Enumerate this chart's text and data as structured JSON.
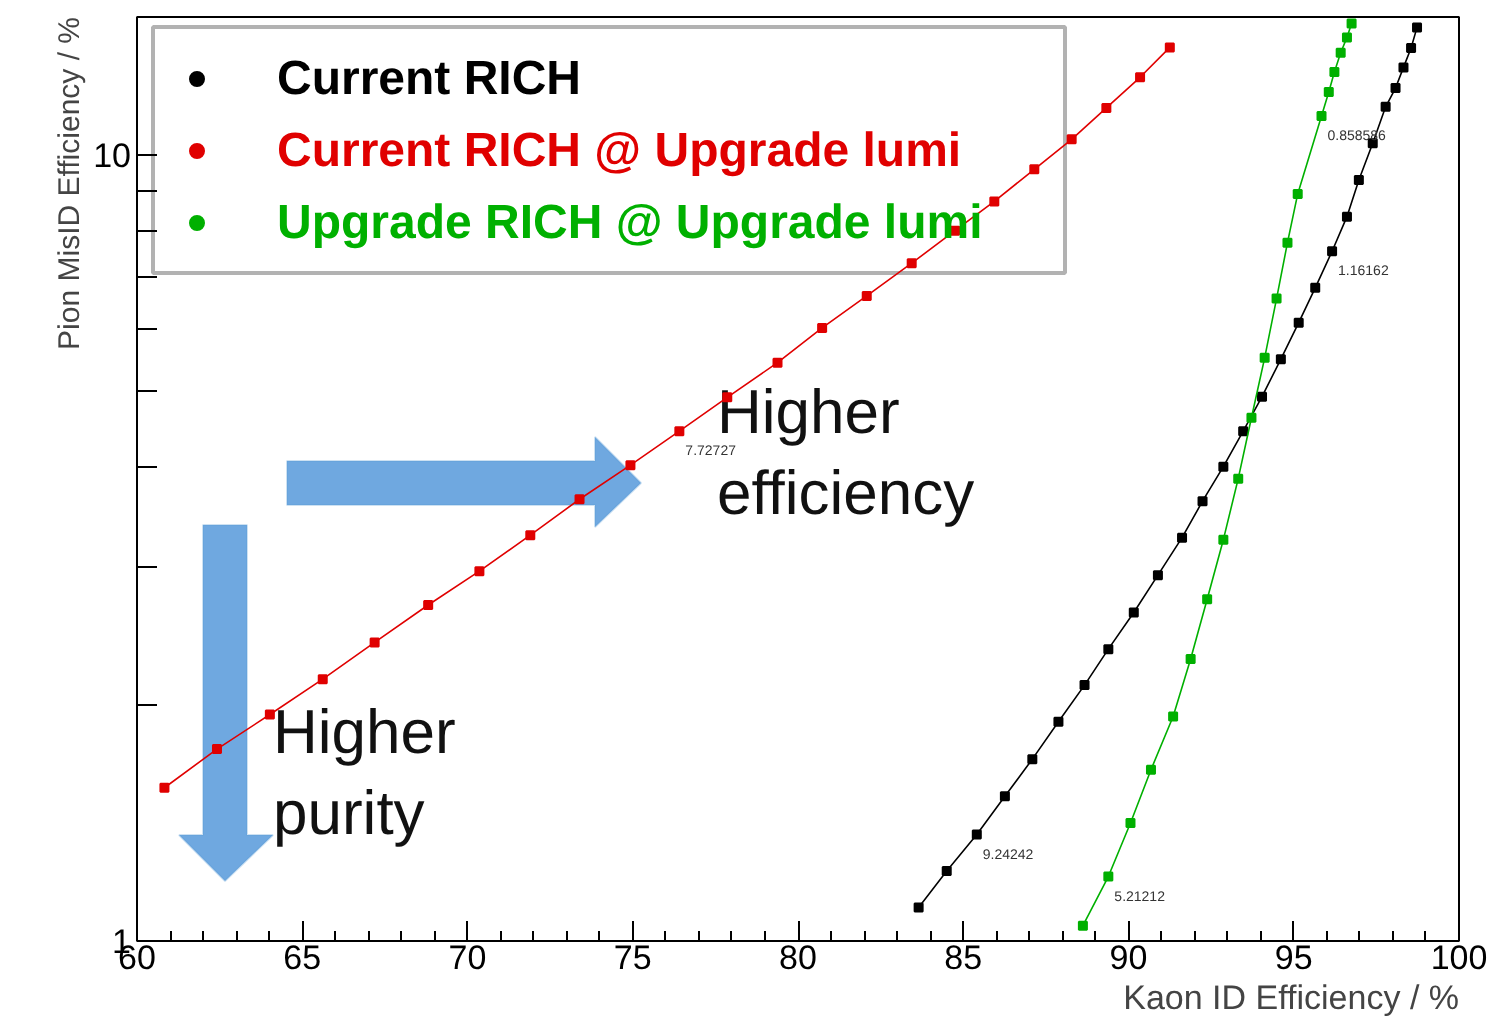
{
  "chart_data": {
    "type": "line",
    "xlabel": "Kaon ID Efficiency / %",
    "ylabel": "Pion MisID Efficiency / %",
    "xlim": [
      60,
      100
    ],
    "xticks": [
      60,
      65,
      70,
      75,
      80,
      85,
      90,
      95,
      100
    ],
    "ylim": [
      1,
      15
    ],
    "yticks": [
      1,
      {
        "value": 2,
        "label": null
      },
      {
        "value": 3,
        "label": null
      },
      {
        "value": 4,
        "label": null
      },
      {
        "value": 5,
        "label": null
      },
      {
        "value": 6,
        "label": null
      },
      {
        "value": 7,
        "label": null
      },
      {
        "value": 8,
        "label": null
      },
      {
        "value": 9,
        "label": null
      },
      10
    ],
    "log": "y",
    "grid": false,
    "legend": "top left",
    "marker": "square",
    "line_style": "solid",
    "series": [
      {
        "name": "Current RICH",
        "color": "#000000",
        "x": [
          83.65,
          84.5,
          85.41,
          86.26,
          87.09,
          87.88,
          88.67,
          89.39,
          90.16,
          90.89,
          91.62,
          92.24,
          92.87,
          93.47,
          94.04,
          94.61,
          95.15,
          95.65,
          96.16,
          96.61,
          96.97,
          97.39,
          97.78,
          98.08,
          98.32,
          98.55,
          98.73
        ],
        "values": [
          1.103,
          1.228,
          1.366,
          1.528,
          1.704,
          1.901,
          2.117,
          2.352,
          2.619,
          2.922,
          3.261,
          3.629,
          4.016,
          4.456,
          4.93,
          5.502,
          6.124,
          6.782,
          7.549,
          8.355,
          9.305,
          10.36,
          11.53,
          12.18,
          12.94,
          13.7,
          14.55
        ]
      },
      {
        "name": "Current RICH @ Upgrade lumi",
        "color": "#e00000",
        "x": [
          60.83,
          62.42,
          64.02,
          65.62,
          67.19,
          68.81,
          70.36,
          71.9,
          73.39,
          74.93,
          76.41,
          77.86,
          79.38,
          80.73,
          82.08,
          83.44,
          84.75,
          85.94,
          87.15,
          88.28,
          89.33,
          90.35,
          91.25
        ],
        "values": [
          1.567,
          1.755,
          1.942,
          2.154,
          2.399,
          2.677,
          2.956,
          3.285,
          3.65,
          4.033,
          4.456,
          4.921,
          5.446,
          6.031,
          6.624,
          7.29,
          8.019,
          8.738,
          9.6,
          10.48,
          11.49,
          12.57,
          13.72
        ]
      },
      {
        "name": "Upgrade RICH @ Upgrade lumi",
        "color": "#00b000",
        "x": [
          88.62,
          89.39,
          90.06,
          90.68,
          91.35,
          91.88,
          92.38,
          92.87,
          93.32,
          93.72,
          94.12,
          94.48,
          94.81,
          95.12,
          95.84,
          96.06,
          96.23,
          96.42,
          96.61,
          96.75
        ],
        "values": [
          1.046,
          1.208,
          1.413,
          1.652,
          1.931,
          2.285,
          2.723,
          3.242,
          3.877,
          4.634,
          5.524,
          6.572,
          7.741,
          8.931,
          11.22,
          12.04,
          12.77,
          13.51,
          14.13,
          14.72
        ]
      }
    ],
    "annotations": [
      "Higher efficiency",
      "Higher purity",
      {
        "text": "9.24242",
        "x": 85.41,
        "y": 1.366
      },
      {
        "text": "1.16162",
        "x": 96.16,
        "y": 7.549
      },
      {
        "text": "5.21212",
        "x": 89.39,
        "y": 1.208
      },
      {
        "text": "0.858586",
        "x": 95.84,
        "y": 11.22
      },
      {
        "text": "7.72727",
        "x": 76.41,
        "y": 4.456
      }
    ]
  }
}
